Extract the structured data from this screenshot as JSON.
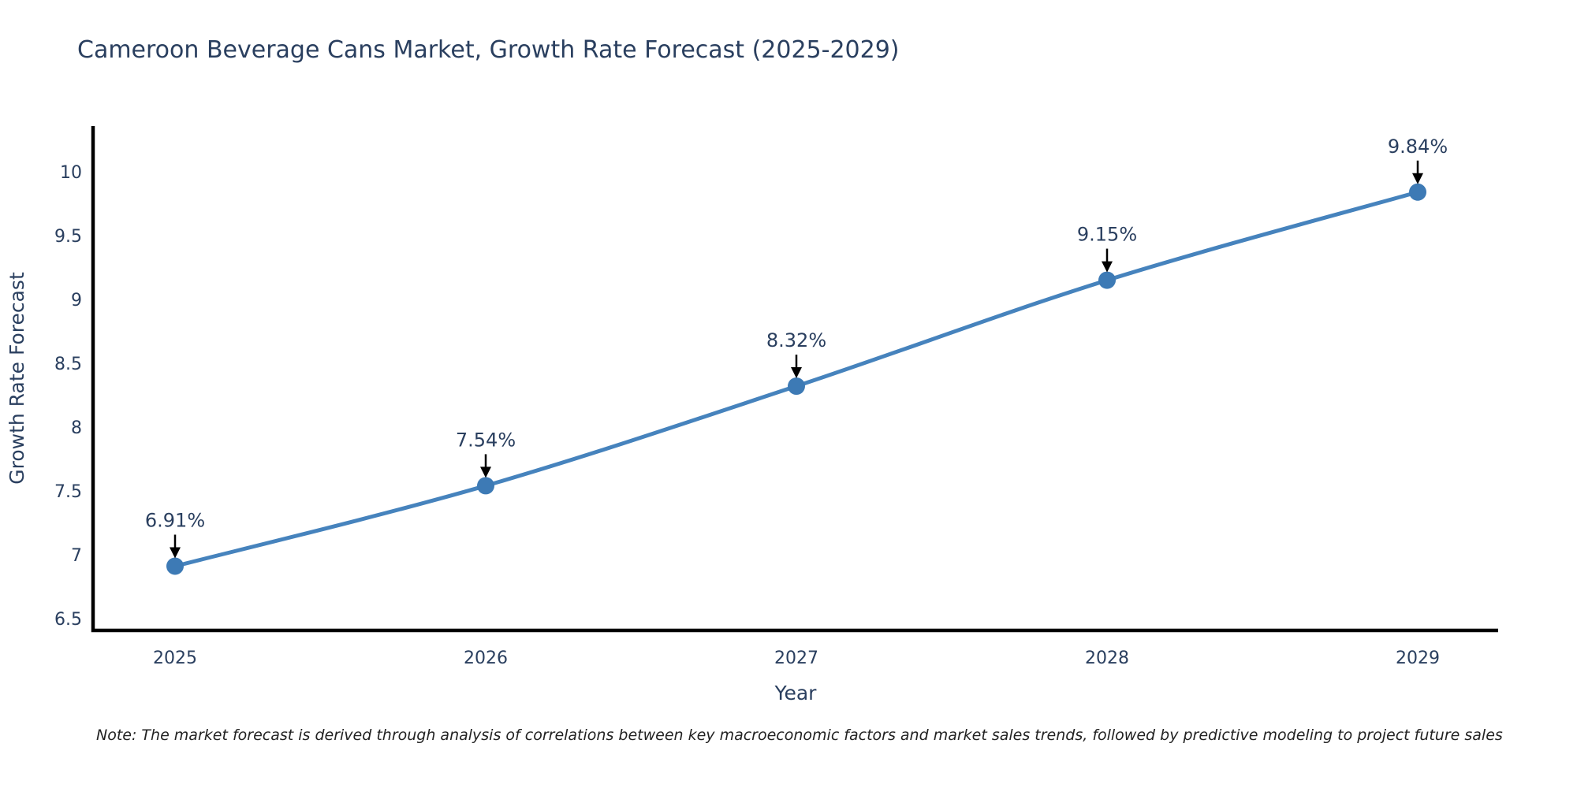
{
  "note": "Note: The market forecast is derived through analysis of correlations between key macroeconomic factors and market sales trends, followed by predictive modeling to project future sales",
  "chart_data": {
    "type": "line",
    "title": "Cameroon Beverage Cans Market, Growth Rate Forecast (2025-2029)",
    "xlabel": "Year",
    "ylabel": "Growth Rate Forecast",
    "categories": [
      "2025",
      "2026",
      "2027",
      "2028",
      "2029"
    ],
    "values": [
      6.91,
      7.54,
      8.32,
      9.15,
      9.84
    ],
    "point_labels": [
      "6.91%",
      "7.54%",
      "8.32%",
      "9.15%",
      "9.84%"
    ],
    "ytick_labels": [
      "6.5",
      "7",
      "7.5",
      "8",
      "8.5",
      "9",
      "9.5",
      "10"
    ],
    "ytick_values": [
      6.5,
      7,
      7.5,
      8,
      8.5,
      9,
      9.5,
      10
    ],
    "ylim": [
      6.407,
      10.357
    ],
    "grid": false,
    "legend_position": "none",
    "line_shape": "spline",
    "colors": {
      "line": "#4683bd",
      "marker": "#3d7ab5",
      "axis": "#000000",
      "text": "#2a3f5f",
      "annotation_arrow": "#000000",
      "note_text": "#222222"
    }
  }
}
